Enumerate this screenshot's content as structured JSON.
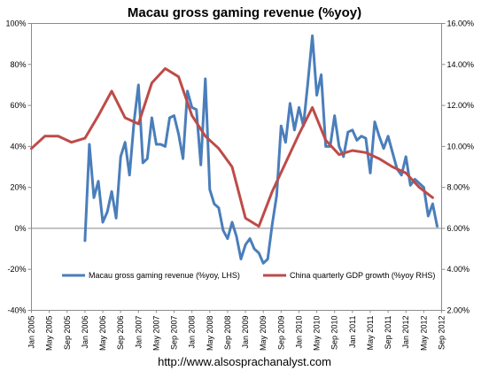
{
  "chart_data": {
    "type": "line",
    "title": "Macau gross gaming revenue (%yoy)",
    "y_left": {
      "min": -40,
      "max": 100,
      "step": 20,
      "tick_labels": [
        "-40%",
        "-20%",
        "0%",
        "20%",
        "40%",
        "60%",
        "80%",
        "100%"
      ]
    },
    "y_right": {
      "min": 2,
      "max": 16,
      "step": 2,
      "tick_labels": [
        "2.00%",
        "4.00%",
        "6.00%",
        "8.00%",
        "10.00%",
        "12.00%",
        "14.00%",
        "16.00%"
      ]
    },
    "x_range": [
      "2005-01",
      "2012-09"
    ],
    "x_tick_labels": [
      "Jan 2005",
      "May 2005",
      "Sep 2005",
      "Jan 2006",
      "May 2006",
      "Sep 2006",
      "Jan 2007",
      "May 2007",
      "Sep 2007",
      "Jan 2008",
      "May 2008",
      "Sep 2008",
      "Jan 2009",
      "May 2009",
      "Sep 2009",
      "Jan 2010",
      "May 2010",
      "Sep 2010",
      "Jan 2011",
      "May 2011",
      "Sep 2011",
      "Jan 2012",
      "May 2012",
      "Sep 2012"
    ],
    "grid": false,
    "zero_line": true,
    "legend_position": "bottom-inside",
    "series": [
      {
        "name": "Macau gross gaming revenue (%yoy, LHS)",
        "axis": "left",
        "color": "#4a7ebb",
        "x": [
          "2006-01",
          "2006-02",
          "2006-03",
          "2006-04",
          "2006-05",
          "2006-06",
          "2006-07",
          "2006-08",
          "2006-09",
          "2006-10",
          "2006-11",
          "2006-12",
          "2007-01",
          "2007-02",
          "2007-03",
          "2007-04",
          "2007-05",
          "2007-06",
          "2007-07",
          "2007-08",
          "2007-09",
          "2007-10",
          "2007-11",
          "2007-12",
          "2008-01",
          "2008-02",
          "2008-03",
          "2008-04",
          "2008-05",
          "2008-06",
          "2008-07",
          "2008-08",
          "2008-09",
          "2008-10",
          "2008-11",
          "2008-12",
          "2009-01",
          "2009-02",
          "2009-03",
          "2009-04",
          "2009-05",
          "2009-06",
          "2009-07",
          "2009-08",
          "2009-09",
          "2009-10",
          "2009-11",
          "2009-12",
          "2010-01",
          "2010-02",
          "2010-03",
          "2010-04",
          "2010-05",
          "2010-06",
          "2010-07",
          "2010-08",
          "2010-09",
          "2010-10",
          "2010-11",
          "2010-12",
          "2011-01",
          "2011-02",
          "2011-03",
          "2011-04",
          "2011-05",
          "2011-06",
          "2011-07",
          "2011-08",
          "2011-09",
          "2011-10",
          "2011-11",
          "2011-12",
          "2012-01",
          "2012-02",
          "2012-03",
          "2012-04",
          "2012-05",
          "2012-06",
          "2012-07",
          "2012-08"
        ],
        "values": [
          -6,
          41,
          15,
          23,
          3,
          8,
          18,
          5,
          35,
          42,
          26,
          52,
          70,
          32,
          34,
          54,
          41,
          41,
          40,
          54,
          55,
          46,
          34,
          67,
          59,
          58,
          31,
          73,
          19,
          12,
          10,
          -1,
          -5,
          3,
          -4,
          -15,
          -8,
          -5,
          -10,
          -12,
          -17,
          -15,
          2,
          16,
          50,
          42,
          61,
          48,
          59,
          50,
          71,
          94,
          65,
          75,
          40,
          40,
          55,
          40,
          35,
          47,
          48,
          43,
          45,
          44,
          27,
          52,
          45,
          39,
          45,
          37,
          29,
          26,
          35,
          21,
          24,
          22,
          20,
          6,
          12,
          1
        ]
      },
      {
        "name": "China quarterly GDP growth (%yoy RHS)",
        "axis": "right",
        "color": "#be4b48",
        "x": [
          "2005-01",
          "2005-04",
          "2005-07",
          "2005-10",
          "2006-01",
          "2006-04",
          "2006-07",
          "2006-10",
          "2007-01",
          "2007-04",
          "2007-07",
          "2007-10",
          "2008-01",
          "2008-04",
          "2008-07",
          "2008-10",
          "2009-01",
          "2009-04",
          "2009-07",
          "2009-10",
          "2010-01",
          "2010-04",
          "2010-07",
          "2010-10",
          "2011-01",
          "2011-04",
          "2011-07",
          "2011-10",
          "2012-01",
          "2012-04",
          "2012-07"
        ],
        "values": [
          9.9,
          10.5,
          10.5,
          10.2,
          10.4,
          11.5,
          12.7,
          11.4,
          11.1,
          13.1,
          13.8,
          13.4,
          11.5,
          10.5,
          9.9,
          9.0,
          6.5,
          6.1,
          7.8,
          9.2,
          10.6,
          11.9,
          10.3,
          9.6,
          9.8,
          9.7,
          9.4,
          9.0,
          8.7,
          8.0,
          7.5
        ]
      }
    ]
  },
  "source_text": "http://www.alsosprachanalyst.com"
}
